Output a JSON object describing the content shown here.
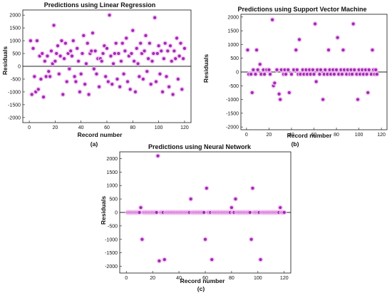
{
  "figure": {
    "panels": [
      {
        "id": "a",
        "panel_label": "(a)"
      },
      {
        "id": "b",
        "panel_label": "(b)"
      },
      {
        "id": "c",
        "panel_label": "(c)"
      }
    ]
  },
  "colors": {
    "point": "#9e2ab5",
    "point_halo": "#f6c2f2",
    "zero_line": "#222222",
    "axes": "#111111"
  },
  "chart_data": [
    {
      "type": "scatter",
      "title": "Predictions using Linear Regression",
      "xlabel": "Record number",
      "ylabel": "Residuals",
      "xlim": [
        -5,
        125
      ],
      "ylim": [
        -2200,
        2200
      ],
      "xticks": [
        0,
        20,
        40,
        60,
        80,
        100,
        120
      ],
      "yticks": [
        -2000,
        -1500,
        -1000,
        -500,
        0,
        500,
        1000,
        1500,
        2000
      ],
      "zero_line": 0,
      "points": [
        [
          1,
          1000
        ],
        [
          2,
          -1100
        ],
        [
          3,
          700
        ],
        [
          4,
          -400
        ],
        [
          5,
          -1000
        ],
        [
          6,
          1000
        ],
        [
          7,
          -900
        ],
        [
          8,
          400
        ],
        [
          9,
          -500
        ],
        [
          10,
          500
        ],
        [
          11,
          -1200
        ],
        [
          12,
          200
        ],
        [
          13,
          -400
        ],
        [
          14,
          400
        ],
        [
          15,
          -200
        ],
        [
          16,
          -400
        ],
        [
          17,
          600
        ],
        [
          18,
          100
        ],
        [
          19,
          1600
        ],
        [
          20,
          200
        ],
        [
          21,
          500
        ],
        [
          22,
          800
        ],
        [
          23,
          -300
        ],
        [
          24,
          400
        ],
        [
          25,
          1000
        ],
        [
          26,
          -1100
        ],
        [
          27,
          300
        ],
        [
          28,
          900
        ],
        [
          29,
          -600
        ],
        [
          30,
          500
        ],
        [
          31,
          -100
        ],
        [
          32,
          600
        ],
        [
          33,
          400
        ],
        [
          34,
          1000
        ],
        [
          35,
          -400
        ],
        [
          36,
          -600
        ],
        [
          37,
          700
        ],
        [
          38,
          200
        ],
        [
          39,
          -1000
        ],
        [
          40,
          -300
        ],
        [
          41,
          500
        ],
        [
          42,
          1200
        ],
        [
          43,
          -700
        ],
        [
          44,
          100
        ],
        [
          45,
          900
        ],
        [
          46,
          -1100
        ],
        [
          47,
          500
        ],
        [
          48,
          600
        ],
        [
          49,
          1300
        ],
        [
          50,
          -100
        ],
        [
          51,
          600
        ],
        [
          52,
          -300
        ],
        [
          53,
          300
        ],
        [
          54,
          -800
        ],
        [
          55,
          300
        ],
        [
          56,
          200
        ],
        [
          57,
          500
        ],
        [
          58,
          800
        ],
        [
          59,
          -400
        ],
        [
          60,
          700
        ],
        [
          61,
          -600
        ],
        [
          62,
          2000
        ],
        [
          63,
          400
        ],
        [
          64,
          -700
        ],
        [
          65,
          100
        ],
        [
          66,
          500
        ],
        [
          67,
          900
        ],
        [
          68,
          -500
        ],
        [
          69,
          500
        ],
        [
          70,
          -800
        ],
        [
          71,
          200
        ],
        [
          72,
          900
        ],
        [
          73,
          -300
        ],
        [
          74,
          600
        ],
        [
          75,
          1100
        ],
        [
          76,
          -600
        ],
        [
          77,
          400
        ],
        [
          78,
          -900
        ],
        [
          79,
          500
        ],
        [
          80,
          1400
        ],
        [
          81,
          200
        ],
        [
          82,
          -1000
        ],
        [
          83,
          700
        ],
        [
          84,
          100
        ],
        [
          85,
          -400
        ],
        [
          86,
          900
        ],
        [
          87,
          500
        ],
        [
          88,
          -500
        ],
        [
          89,
          600
        ],
        [
          90,
          1200
        ],
        [
          91,
          -200
        ],
        [
          92,
          300
        ],
        [
          93,
          900
        ],
        [
          94,
          -700
        ],
        [
          95,
          200
        ],
        [
          96,
          500
        ],
        [
          97,
          1900
        ],
        [
          98,
          -600
        ],
        [
          99,
          500
        ],
        [
          100,
          800
        ],
        [
          101,
          -300
        ],
        [
          102,
          600
        ],
        [
          103,
          -1000
        ],
        [
          104,
          300
        ],
        [
          105,
          900
        ],
        [
          106,
          -400
        ],
        [
          107,
          600
        ],
        [
          108,
          -800
        ],
        [
          109,
          800
        ],
        [
          110,
          200
        ],
        [
          111,
          -1100
        ],
        [
          112,
          600
        ],
        [
          113,
          300
        ],
        [
          114,
          1100
        ],
        [
          115,
          -500
        ],
        [
          116,
          400
        ],
        [
          117,
          900
        ],
        [
          118,
          -900
        ],
        [
          119,
          300
        ],
        [
          120,
          700
        ]
      ]
    },
    {
      "type": "scatter",
      "title": "Predictions using Support Vector Machine",
      "xlabel": "Record number",
      "ylabel": "Residuals",
      "xlim": [
        -5,
        125
      ],
      "ylim": [
        -2100,
        2100
      ],
      "xticks": [
        0,
        20,
        40,
        60,
        80,
        100,
        120
      ],
      "yticks": [
        -2000,
        -1500,
        -1000,
        -500,
        0,
        500,
        1000,
        1500,
        2000
      ],
      "zero_line": 0,
      "points": [
        [
          1,
          800
        ],
        [
          2,
          -80
        ],
        [
          4,
          -80
        ],
        [
          5,
          -750
        ],
        [
          6,
          80
        ],
        [
          8,
          -80
        ],
        [
          9,
          800
        ],
        [
          10,
          80
        ],
        [
          12,
          280
        ],
        [
          13,
          -80
        ],
        [
          15,
          80
        ],
        [
          16,
          -80
        ],
        [
          18,
          80
        ],
        [
          20,
          80
        ],
        [
          21,
          -80
        ],
        [
          23,
          1900
        ],
        [
          24,
          -500
        ],
        [
          25,
          -400
        ],
        [
          27,
          80
        ],
        [
          29,
          -800
        ],
        [
          30,
          -1000
        ],
        [
          31,
          80
        ],
        [
          33,
          -80
        ],
        [
          34,
          80
        ],
        [
          35,
          -80
        ],
        [
          37,
          80
        ],
        [
          38,
          -750
        ],
        [
          40,
          -80
        ],
        [
          42,
          80
        ],
        [
          44,
          800
        ],
        [
          45,
          80
        ],
        [
          46,
          -80
        ],
        [
          47,
          1180
        ],
        [
          48,
          -80
        ],
        [
          50,
          80
        ],
        [
          51,
          -80
        ],
        [
          53,
          80
        ],
        [
          54,
          -80
        ],
        [
          56,
          80
        ],
        [
          57,
          -80
        ],
        [
          59,
          80
        ],
        [
          60,
          -80
        ],
        [
          61,
          1750
        ],
        [
          62,
          -350
        ],
        [
          63,
          80
        ],
        [
          65,
          -80
        ],
        [
          66,
          80
        ],
        [
          68,
          -1000
        ],
        [
          69,
          -80
        ],
        [
          70,
          80
        ],
        [
          72,
          -80
        ],
        [
          73,
          800
        ],
        [
          74,
          80
        ],
        [
          75,
          -80
        ],
        [
          77,
          80
        ],
        [
          78,
          -80
        ],
        [
          80,
          80
        ],
        [
          81,
          1250
        ],
        [
          82,
          -80
        ],
        [
          84,
          80
        ],
        [
          85,
          -80
        ],
        [
          86,
          800
        ],
        [
          87,
          80
        ],
        [
          89,
          -80
        ],
        [
          90,
          80
        ],
        [
          92,
          -80
        ],
        [
          93,
          80
        ],
        [
          94,
          -80
        ],
        [
          95,
          1750
        ],
        [
          96,
          80
        ],
        [
          98,
          -80
        ],
        [
          99,
          -1000
        ],
        [
          100,
          80
        ],
        [
          101,
          -80
        ],
        [
          103,
          80
        ],
        [
          104,
          -80
        ],
        [
          106,
          80
        ],
        [
          107,
          -80
        ],
        [
          108,
          -750
        ],
        [
          109,
          80
        ],
        [
          111,
          -80
        ],
        [
          112,
          800
        ],
        [
          113,
          80
        ],
        [
          114,
          -80
        ],
        [
          115,
          80
        ],
        [
          116,
          -80
        ]
      ]
    },
    {
      "type": "scatter",
      "title": "Predictions using Neural Network",
      "xlabel": "Record number",
      "ylabel": "Residuals",
      "xlim": [
        -5,
        125
      ],
      "ylim": [
        -2250,
        2250
      ],
      "xticks": [
        0,
        20,
        40,
        60,
        80,
        100,
        120
      ],
      "yticks": [
        -2000,
        -1500,
        -1000,
        -500,
        0,
        500,
        1000,
        1500,
        2000
      ],
      "zero_line": 0,
      "points": [
        [
          1,
          0
        ],
        [
          2,
          0
        ],
        [
          3,
          0
        ],
        [
          4,
          0
        ],
        [
          5,
          0
        ],
        [
          6,
          0
        ],
        [
          7,
          0
        ],
        [
          8,
          0
        ],
        [
          9,
          0
        ],
        [
          10,
          0
        ],
        [
          11,
          180
        ],
        [
          12,
          -1000
        ],
        [
          13,
          0
        ],
        [
          14,
          0
        ],
        [
          15,
          0
        ],
        [
          16,
          0
        ],
        [
          17,
          0
        ],
        [
          18,
          0
        ],
        [
          19,
          0
        ],
        [
          20,
          0
        ],
        [
          21,
          0
        ],
        [
          22,
          0
        ],
        [
          23,
          0
        ],
        [
          24,
          2100
        ],
        [
          25,
          -1800
        ],
        [
          26,
          0
        ],
        [
          27,
          0
        ],
        [
          28,
          0
        ],
        [
          29,
          -1750
        ],
        [
          30,
          0
        ],
        [
          31,
          0
        ],
        [
          32,
          0
        ],
        [
          33,
          0
        ],
        [
          34,
          0
        ],
        [
          35,
          0
        ],
        [
          36,
          0
        ],
        [
          37,
          0
        ],
        [
          38,
          0
        ],
        [
          39,
          0
        ],
        [
          40,
          0
        ],
        [
          41,
          0
        ],
        [
          42,
          0
        ],
        [
          43,
          0
        ],
        [
          44,
          0
        ],
        [
          45,
          0
        ],
        [
          46,
          0
        ],
        [
          47,
          0
        ],
        [
          48,
          0
        ],
        [
          49,
          500
        ],
        [
          50,
          0
        ],
        [
          51,
          0
        ],
        [
          52,
          0
        ],
        [
          53,
          0
        ],
        [
          54,
          0
        ],
        [
          55,
          0
        ],
        [
          56,
          0
        ],
        [
          57,
          0
        ],
        [
          58,
          0
        ],
        [
          59,
          0
        ],
        [
          60,
          -1000
        ],
        [
          61,
          900
        ],
        [
          62,
          0
        ],
        [
          63,
          0
        ],
        [
          64,
          0
        ],
        [
          65,
          -1750
        ],
        [
          66,
          0
        ],
        [
          67,
          0
        ],
        [
          68,
          0
        ],
        [
          69,
          0
        ],
        [
          70,
          0
        ],
        [
          71,
          0
        ],
        [
          72,
          0
        ],
        [
          73,
          0
        ],
        [
          74,
          0
        ],
        [
          75,
          0
        ],
        [
          76,
          0
        ],
        [
          77,
          0
        ],
        [
          78,
          0
        ],
        [
          79,
          0
        ],
        [
          80,
          180
        ],
        [
          81,
          0
        ],
        [
          82,
          0
        ],
        [
          83,
          500
        ],
        [
          84,
          0
        ],
        [
          85,
          0
        ],
        [
          86,
          0
        ],
        [
          87,
          0
        ],
        [
          88,
          0
        ],
        [
          89,
          0
        ],
        [
          90,
          0
        ],
        [
          91,
          0
        ],
        [
          92,
          0
        ],
        [
          93,
          0
        ],
        [
          94,
          0
        ],
        [
          95,
          -1000
        ],
        [
          96,
          900
        ],
        [
          97,
          0
        ],
        [
          98,
          0
        ],
        [
          99,
          0
        ],
        [
          100,
          0
        ],
        [
          101,
          0
        ],
        [
          102,
          -1750
        ],
        [
          103,
          0
        ],
        [
          104,
          0
        ],
        [
          105,
          0
        ],
        [
          106,
          0
        ],
        [
          107,
          0
        ],
        [
          108,
          0
        ],
        [
          109,
          0
        ],
        [
          110,
          0
        ],
        [
          111,
          0
        ],
        [
          112,
          0
        ],
        [
          113,
          0
        ],
        [
          114,
          0
        ],
        [
          115,
          0
        ],
        [
          116,
          0
        ],
        [
          117,
          180
        ],
        [
          118,
          0
        ],
        [
          119,
          0
        ],
        [
          120,
          0
        ]
      ]
    }
  ]
}
